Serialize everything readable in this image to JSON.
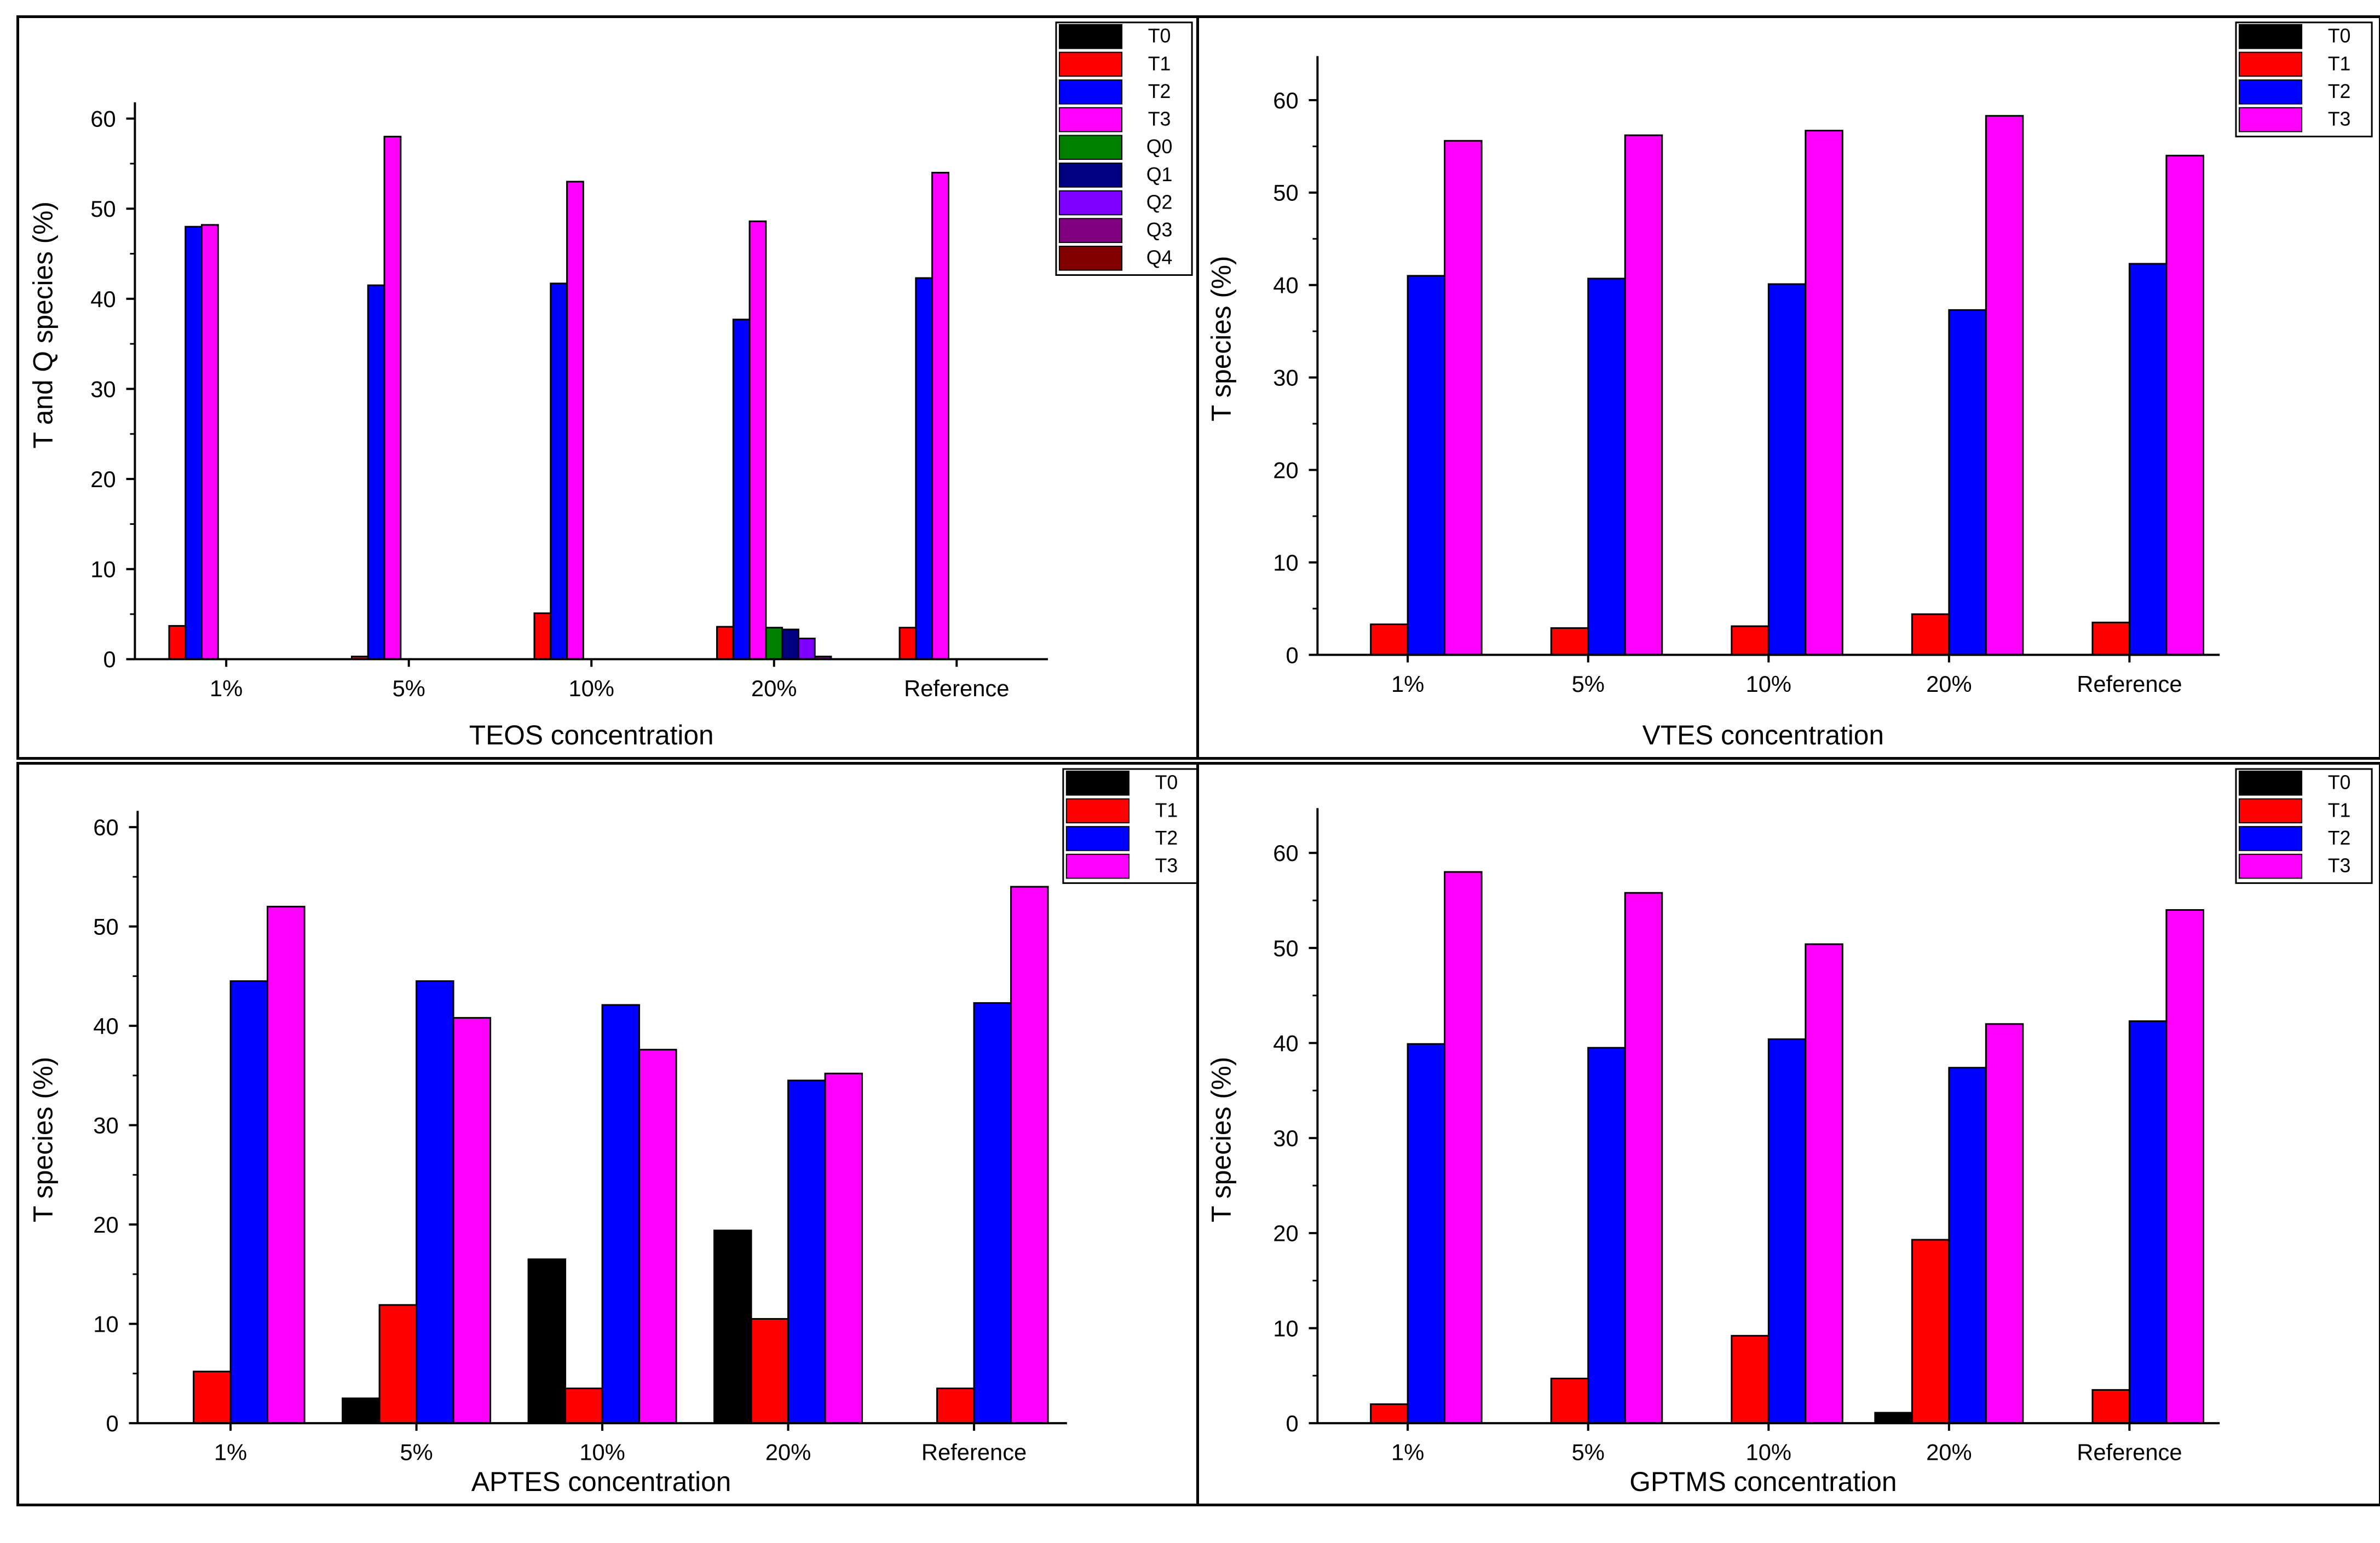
{
  "colors": {
    "T0": "#000000",
    "T1": "#ff0000",
    "T2": "#0000ff",
    "T3": "#ff00ff",
    "Q0": "#008000",
    "Q1": "#000080",
    "Q2": "#8000ff",
    "Q3": "#800080",
    "Q4": "#800000"
  },
  "chart_data": [
    {
      "id": "teos",
      "type": "bar",
      "title": "",
      "xlabel": "TEOS concentration",
      "ylabel": "T and Q species (%)",
      "categories": [
        "1%",
        "5%",
        "10%",
        "20%",
        "Reference"
      ],
      "ylim": [
        0,
        60
      ],
      "yticks": [
        0,
        10,
        20,
        30,
        40,
        50,
        60
      ],
      "legend_position": "top-right",
      "series": [
        {
          "name": "T0",
          "values": [
            0,
            0,
            0,
            0,
            0
          ]
        },
        {
          "name": "T1",
          "values": [
            3.7,
            0.3,
            5.1,
            3.6,
            3.5
          ]
        },
        {
          "name": "T2",
          "values": [
            48.0,
            41.5,
            41.7,
            37.7,
            42.3
          ]
        },
        {
          "name": "T3",
          "values": [
            48.2,
            58.0,
            53.0,
            48.6,
            54.0
          ]
        },
        {
          "name": "Q0",
          "values": [
            0,
            0,
            0,
            3.5,
            0
          ]
        },
        {
          "name": "Q1",
          "values": [
            0,
            0,
            0,
            3.3,
            0
          ]
        },
        {
          "name": "Q2",
          "values": [
            0,
            0,
            0,
            2.3,
            0
          ]
        },
        {
          "name": "Q3",
          "values": [
            0,
            0,
            0,
            0.3,
            0
          ]
        },
        {
          "name": "Q4",
          "values": [
            0,
            0,
            0,
            0,
            0
          ]
        }
      ]
    },
    {
      "id": "vtes",
      "type": "bar",
      "title": "",
      "xlabel": "VTES concentration",
      "ylabel": "T species (%)",
      "categories": [
        "1%",
        "5%",
        "10%",
        "20%",
        "Reference"
      ],
      "ylim": [
        0,
        63
      ],
      "yticks": [
        0,
        10,
        20,
        30,
        40,
        50,
        60
      ],
      "legend_position": "top-right",
      "series": [
        {
          "name": "T0",
          "values": [
            0,
            0,
            0,
            0,
            0
          ]
        },
        {
          "name": "T1",
          "values": [
            3.3,
            2.9,
            3.1,
            4.4,
            3.5
          ]
        },
        {
          "name": "T2",
          "values": [
            41.0,
            40.7,
            40.1,
            37.3,
            42.3
          ]
        },
        {
          "name": "T3",
          "values": [
            55.6,
            56.2,
            56.7,
            58.3,
            54.0
          ]
        }
      ]
    },
    {
      "id": "aptes",
      "type": "bar",
      "title": "",
      "xlabel": "APTES concentration",
      "ylabel": "T species (%)",
      "categories": [
        "1%",
        "5%",
        "10%",
        "20%",
        "Reference"
      ],
      "ylim": [
        0,
        60
      ],
      "yticks": [
        0,
        10,
        20,
        30,
        40,
        50,
        60
      ],
      "legend_position": "top-right",
      "series": [
        {
          "name": "T0",
          "values": [
            0,
            2.5,
            16.5,
            19.4,
            0
          ]
        },
        {
          "name": "T1",
          "values": [
            5.2,
            11.9,
            3.5,
            10.5,
            3.5
          ]
        },
        {
          "name": "T2",
          "values": [
            44.5,
            44.5,
            42.1,
            34.5,
            42.3
          ]
        },
        {
          "name": "T3",
          "values": [
            52.0,
            40.8,
            37.6,
            35.2,
            54.0
          ]
        }
      ]
    },
    {
      "id": "gptms",
      "type": "bar",
      "title": "",
      "xlabel": "GPTMS concentration",
      "ylabel": "T species (%)",
      "categories": [
        "1%",
        "5%",
        "10%",
        "20%",
        "Reference"
      ],
      "ylim": [
        0,
        63
      ],
      "yticks": [
        0,
        10,
        20,
        30,
        40,
        50,
        60
      ],
      "legend_position": "top-right",
      "series": [
        {
          "name": "T0",
          "values": [
            0,
            0,
            0,
            1.1,
            0
          ]
        },
        {
          "name": "T1",
          "values": [
            2.0,
            4.7,
            9.2,
            19.3,
            3.5
          ]
        },
        {
          "name": "T2",
          "values": [
            39.9,
            39.5,
            40.4,
            37.4,
            42.3
          ]
        },
        {
          "name": "T3",
          "values": [
            58.0,
            55.8,
            50.4,
            42.0,
            54.0
          ]
        }
      ]
    }
  ]
}
